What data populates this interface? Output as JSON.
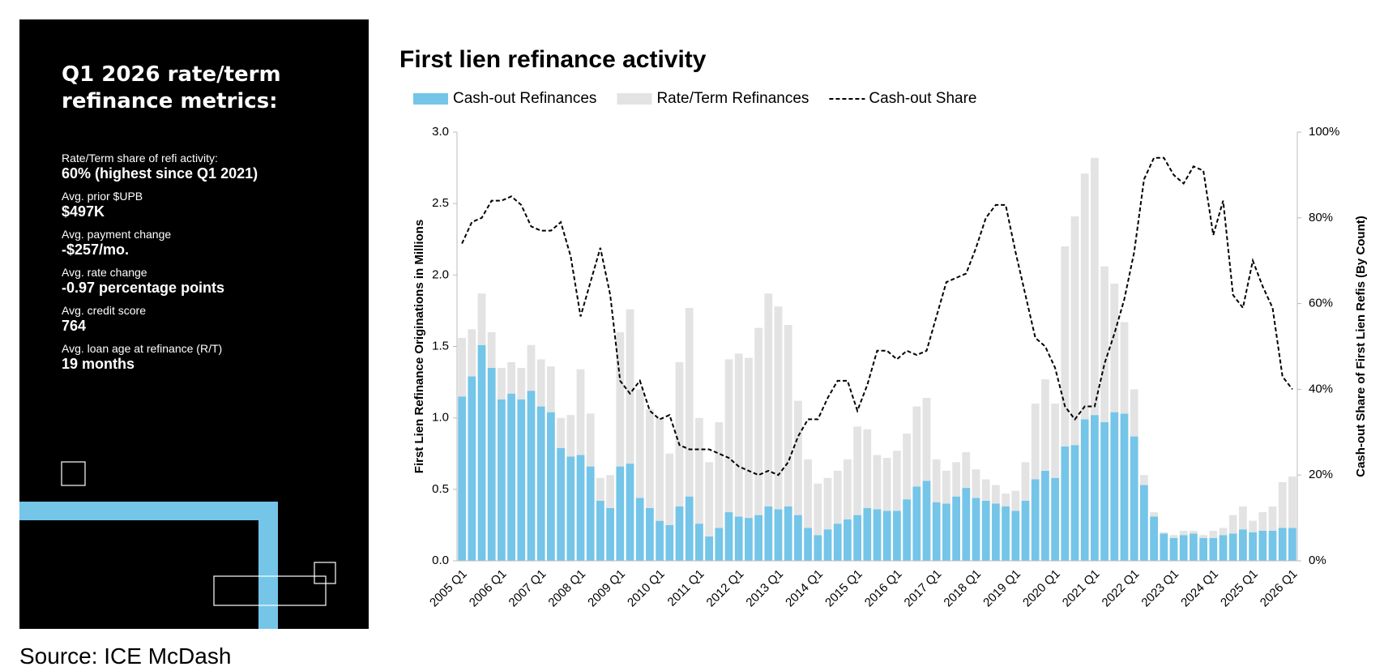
{
  "sidebar": {
    "title": "Q1 2026 rate/term refinance metrics:",
    "metrics": [
      {
        "label": "Rate/Term share of refi activity:",
        "value": "60% (highest since Q1 2021)"
      },
      {
        "label": "Avg. prior $UPB",
        "value": "$497K"
      },
      {
        "label": "Avg. payment change",
        "value": "-$257/mo."
      },
      {
        "label": "Avg. rate change",
        "value": "-0.97 percentage points"
      },
      {
        "label": "Avg. credit score",
        "value": "764"
      },
      {
        "label": "Avg. loan age at refinance (R/T)",
        "value": "19 months"
      }
    ]
  },
  "source": "Source: ICE McDash",
  "chart_data": {
    "type": "bar",
    "stacked": true,
    "title": "First lien refinance activity",
    "y_label": "First Lien Refinance Originations in Millions",
    "y2_label": "Cash-out Share of First Lien Refis (By Count)",
    "categories": [
      "2005 Q1",
      null,
      null,
      null,
      "2006 Q1",
      null,
      null,
      null,
      "2007 Q1",
      null,
      null,
      null,
      "2008 Q1",
      null,
      null,
      null,
      "2009 Q1",
      null,
      null,
      null,
      "2010 Q1",
      null,
      null,
      null,
      "2011 Q1",
      null,
      null,
      null,
      "2012 Q1",
      null,
      null,
      null,
      "2013 Q1",
      null,
      null,
      null,
      "2014 Q1",
      null,
      null,
      null,
      "2015 Q1",
      null,
      null,
      null,
      "2016 Q1",
      null,
      null,
      null,
      "2017 Q1",
      null,
      null,
      null,
      "2018 Q1",
      null,
      null,
      null,
      "2019 Q1",
      null,
      null,
      null,
      "2020 Q1",
      null,
      null,
      null,
      "2021 Q1",
      null,
      null,
      null,
      "2022 Q1",
      null,
      null,
      null,
      "2023 Q1",
      null,
      null,
      null,
      "2024 Q1",
      null,
      null,
      null,
      "2025 Q1",
      null,
      null,
      null,
      "2026 Q1"
    ],
    "series": [
      {
        "name": "Cash-out Refinances",
        "color": "#74c5e8",
        "values": [
          1.15,
          1.29,
          1.51,
          1.35,
          1.13,
          1.17,
          1.13,
          1.19,
          1.08,
          1.04,
          0.79,
          0.73,
          0.74,
          0.66,
          0.42,
          0.37,
          0.66,
          0.68,
          0.44,
          0.37,
          0.28,
          0.25,
          0.38,
          0.45,
          0.26,
          0.17,
          0.23,
          0.34,
          0.31,
          0.3,
          0.32,
          0.38,
          0.36,
          0.38,
          0.32,
          0.23,
          0.18,
          0.22,
          0.26,
          0.29,
          0.32,
          0.37,
          0.36,
          0.35,
          0.35,
          0.43,
          0.52,
          0.56,
          0.41,
          0.4,
          0.45,
          0.51,
          0.44,
          0.42,
          0.4,
          0.38,
          0.35,
          0.42,
          0.57,
          0.63,
          0.58,
          0.8,
          0.81,
          0.99,
          1.02,
          0.97,
          1.04,
          1.03,
          0.87,
          0.53,
          0.31,
          0.19,
          0.16,
          0.18,
          0.19,
          0.16,
          0.16,
          0.18,
          0.19,
          0.22,
          0.2,
          0.21,
          0.21,
          0.23,
          0.23
        ]
      },
      {
        "name": "Rate/Term Refinances",
        "color": "#e3e3e3",
        "values": [
          0.41,
          0.33,
          0.36,
          0.25,
          0.22,
          0.22,
          0.22,
          0.32,
          0.33,
          0.32,
          0.21,
          0.29,
          0.6,
          0.37,
          0.16,
          0.23,
          0.94,
          1.08,
          0.76,
          0.69,
          0.72,
          0.5,
          1.01,
          1.32,
          0.74,
          0.52,
          0.74,
          1.07,
          1.14,
          1.12,
          1.31,
          1.49,
          1.42,
          1.27,
          0.8,
          0.48,
          0.36,
          0.36,
          0.37,
          0.42,
          0.62,
          0.55,
          0.38,
          0.37,
          0.42,
          0.46,
          0.56,
          0.58,
          0.3,
          0.23,
          0.24,
          0.25,
          0.2,
          0.15,
          0.13,
          0.09,
          0.14,
          0.27,
          0.53,
          0.64,
          0.52,
          1.4,
          1.6,
          1.72,
          1.8,
          1.09,
          0.9,
          0.64,
          0.33,
          0.07,
          0.03,
          0.01,
          0.02,
          0.03,
          0.02,
          0.02,
          0.05,
          0.05,
          0.13,
          0.16,
          0.08,
          0.13,
          0.17,
          0.32,
          0.36
        ]
      },
      {
        "name": "Cash-out Share",
        "type": "line",
        "dash": true,
        "axis": "y2",
        "color": "#000000",
        "values": [
          74,
          79,
          80,
          84,
          84,
          85,
          83,
          78,
          77,
          77,
          79,
          71,
          57,
          65,
          73,
          62,
          42,
          39,
          42,
          35,
          33,
          34,
          27,
          26,
          26,
          26,
          25,
          24,
          22,
          21,
          20,
          21,
          20,
          23,
          29,
          33,
          33,
          38,
          42,
          42,
          35,
          41,
          49,
          49,
          47,
          49,
          48,
          49,
          57,
          65,
          66,
          67,
          73,
          80,
          83,
          83,
          72,
          62,
          52,
          50,
          45,
          36,
          33,
          36,
          36,
          46,
          53,
          61,
          72,
          89,
          94,
          94,
          90,
          88,
          92,
          91,
          76,
          84,
          62,
          59,
          70,
          64,
          59,
          43,
          40
        ]
      }
    ],
    "ylim": [
      0,
      3
    ],
    "yticks": [
      {
        "value": 0,
        "label": "0.0"
      },
      0.5,
      {
        "value": 1,
        "label": "1.0"
      },
      1.5,
      {
        "value": 2,
        "label": "2.0"
      },
      2.5,
      {
        "value": 3,
        "label": "3.0"
      }
    ],
    "y2lim": [
      0,
      100
    ],
    "y2ticks": [
      {
        "value": 0,
        "label": "0%"
      },
      {
        "value": 20,
        "label": "20%"
      },
      {
        "value": 40,
        "label": "40%"
      },
      {
        "value": 60,
        "label": "60%"
      },
      {
        "value": 80,
        "label": "80%"
      },
      {
        "value": 100,
        "label": "100%"
      }
    ],
    "grid": false,
    "legend": "top"
  }
}
